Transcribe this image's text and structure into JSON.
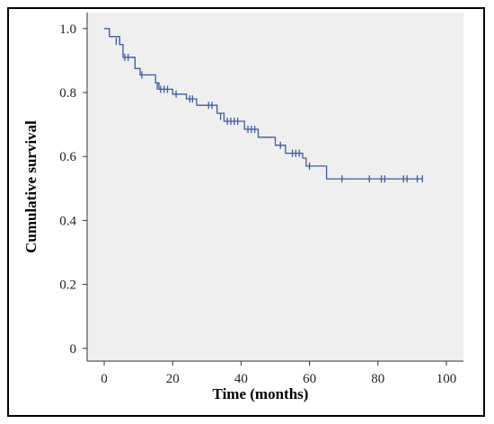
{
  "colors": {
    "line": "#3a5ba0",
    "plot_bg": "#efefef",
    "axis": "#333333"
  },
  "chart_data": {
    "type": "line",
    "title": "",
    "xlabel": "Time (months)",
    "ylabel": "Cumulative survival",
    "xlim": [
      -5,
      105
    ],
    "ylim": [
      -0.04,
      1.05
    ],
    "xticks": [
      0,
      20,
      40,
      60,
      80,
      100
    ],
    "xtick_labels": [
      "0",
      "20",
      "40",
      "60",
      "80",
      "100"
    ],
    "yticks": [
      0,
      0.2,
      0.4,
      0.6,
      0.8,
      1.0
    ],
    "ytick_labels": [
      "0",
      "0.2",
      "0.4",
      "0.6",
      "0.8",
      "1.0"
    ],
    "grid": false,
    "legend": "none",
    "series": [
      {
        "steps": [
          [
            0,
            1.0
          ],
          [
            1.5,
            0.975
          ],
          [
            4.5,
            0.95
          ],
          [
            5.5,
            0.91
          ],
          [
            9,
            0.875
          ],
          [
            10.5,
            0.855
          ],
          [
            15,
            0.83
          ],
          [
            16,
            0.81
          ],
          [
            20,
            0.795
          ],
          [
            24,
            0.78
          ],
          [
            27,
            0.76
          ],
          [
            33,
            0.735
          ],
          [
            35,
            0.71
          ],
          [
            41,
            0.685
          ],
          [
            45,
            0.66
          ],
          [
            50,
            0.635
          ],
          [
            53,
            0.61
          ],
          [
            58,
            0.595
          ],
          [
            59,
            0.57
          ],
          [
            65,
            0.53
          ],
          [
            93,
            0.53
          ]
        ],
        "censored": [
          [
            3.5,
            0.96
          ],
          [
            4.5,
            0.96
          ],
          [
            6,
            0.91
          ],
          [
            7,
            0.91
          ],
          [
            11,
            0.855
          ],
          [
            15.5,
            0.82
          ],
          [
            16.5,
            0.81
          ],
          [
            17.5,
            0.81
          ],
          [
            18.5,
            0.81
          ],
          [
            21,
            0.795
          ],
          [
            25,
            0.78
          ],
          [
            25.8,
            0.78
          ],
          [
            30.5,
            0.76
          ],
          [
            31.5,
            0.76
          ],
          [
            34,
            0.725
          ],
          [
            36,
            0.71
          ],
          [
            37,
            0.71
          ],
          [
            38,
            0.71
          ],
          [
            39,
            0.71
          ],
          [
            42,
            0.685
          ],
          [
            43,
            0.685
          ],
          [
            44,
            0.685
          ],
          [
            51.5,
            0.635
          ],
          [
            55,
            0.61
          ],
          [
            56,
            0.61
          ],
          [
            57,
            0.61
          ],
          [
            60,
            0.57
          ],
          [
            69.5,
            0.53
          ],
          [
            77.5,
            0.53
          ],
          [
            81,
            0.53
          ],
          [
            82,
            0.53
          ],
          [
            87.5,
            0.53
          ],
          [
            88.5,
            0.53
          ],
          [
            91.5,
            0.53
          ],
          [
            93,
            0.53
          ]
        ]
      }
    ]
  }
}
